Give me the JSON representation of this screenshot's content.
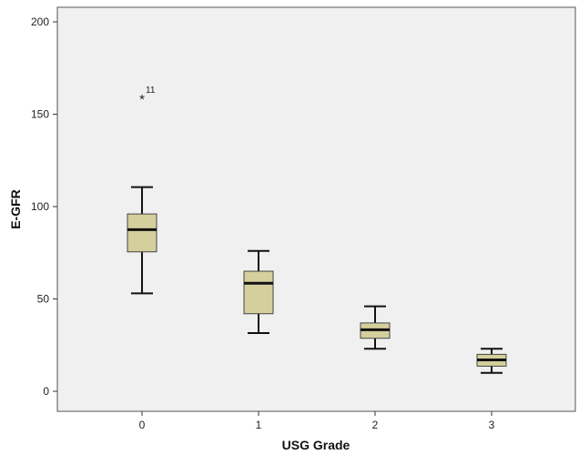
{
  "chart_data": {
    "type": "boxplot",
    "xlabel": "USG Grade",
    "ylabel": "E-GFR",
    "ylim": [
      0,
      200
    ],
    "yticks": [
      0,
      50,
      100,
      150,
      200
    ],
    "categories": [
      "0",
      "1",
      "2",
      "3"
    ],
    "boxes": [
      {
        "category": "0",
        "whisker_low": 53,
        "q1": 75.5,
        "median": 87.5,
        "q3": 96,
        "whisker_high": 110.5,
        "outliers": [
          {
            "value": 158.5,
            "label": "11",
            "marker": "star"
          }
        ]
      },
      {
        "category": "1",
        "whisker_low": 31.5,
        "q1": 42,
        "median": 58.5,
        "q3": 65,
        "whisker_high": 76,
        "outliers": []
      },
      {
        "category": "2",
        "whisker_low": 23,
        "q1": 28.7,
        "median": 33.3,
        "q3": 37,
        "whisker_high": 46,
        "outliers": []
      },
      {
        "category": "3",
        "whisker_low": 10,
        "q1": 13.6,
        "median": 17,
        "q3": 20,
        "whisker_high": 23,
        "outliers": []
      }
    ],
    "grid": false,
    "colors": {
      "box_fill": "#d4cf9c",
      "plot_background": "#f0f0f0",
      "line": "#111111"
    }
  }
}
